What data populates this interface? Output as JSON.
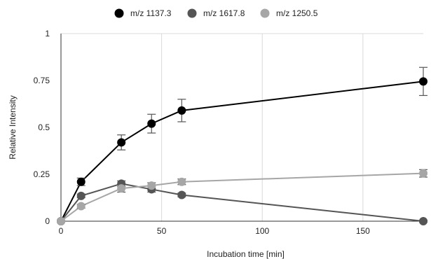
{
  "chart_data": {
    "type": "line",
    "title": "",
    "xlabel": "Incubation time [min]",
    "ylabel": "Relative Intensity",
    "xlim": [
      0,
      180
    ],
    "ylim": [
      0,
      1
    ],
    "x_ticks": [
      "0",
      "50",
      "100",
      "150"
    ],
    "y_ticks": [
      "0",
      "0.25",
      "0.5",
      "0.75",
      "1"
    ],
    "grid": "vertical",
    "legend_position": "top",
    "series": [
      {
        "name": "m/z 1137.3",
        "color": "#000000",
        "points": [
          {
            "x": 0,
            "y": 0,
            "err": 0
          },
          {
            "x": 10,
            "y": 0.21,
            "err": 0.02
          },
          {
            "x": 30,
            "y": 0.42,
            "err": 0.04
          },
          {
            "x": 45,
            "y": 0.52,
            "err": 0.05
          },
          {
            "x": 60,
            "y": 0.59,
            "err": 0.06
          },
          {
            "x": 180,
            "y": 0.745,
            "err": 0.075
          }
        ]
      },
      {
        "name": "m/z 1617.8",
        "color": "#555555",
        "points": [
          {
            "x": 0,
            "y": 0,
            "err": 0
          },
          {
            "x": 10,
            "y": 0.135,
            "err": 0.01
          },
          {
            "x": 30,
            "y": 0.2,
            "err": 0.015
          },
          {
            "x": 45,
            "y": 0.17,
            "err": 0.015
          },
          {
            "x": 60,
            "y": 0.14,
            "err": 0.01
          },
          {
            "x": 180,
            "y": 0.0,
            "err": 0.005
          }
        ]
      },
      {
        "name": "m/z 1250.5",
        "color": "#a6a6a6",
        "points": [
          {
            "x": 0,
            "y": 0,
            "err": 0
          },
          {
            "x": 10,
            "y": 0.08,
            "err": 0.01
          },
          {
            "x": 30,
            "y": 0.175,
            "err": 0.02
          },
          {
            "x": 45,
            "y": 0.19,
            "err": 0.015
          },
          {
            "x": 60,
            "y": 0.21,
            "err": 0.015
          },
          {
            "x": 180,
            "y": 0.255,
            "err": 0.02
          }
        ]
      }
    ]
  }
}
